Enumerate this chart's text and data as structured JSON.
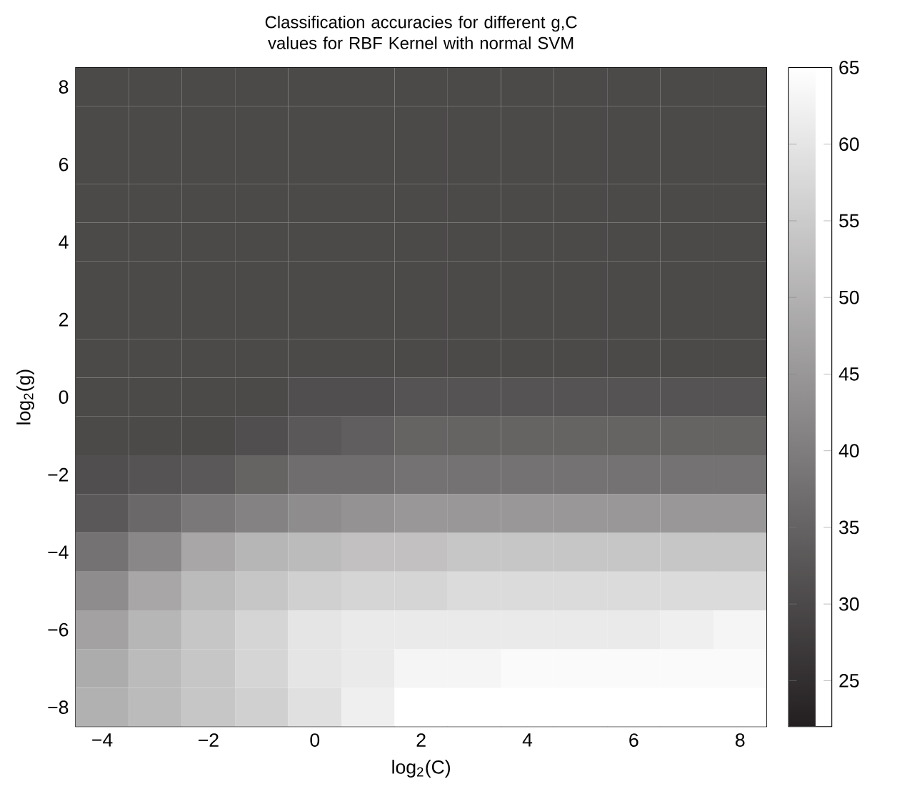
{
  "chart_data": {
    "type": "heatmap",
    "title": "Classification accuracies for different g,C values for RBF Kernel with normal SVM",
    "xlabel": "log$_{2}$(C)",
    "ylabel": "log$_{2}$(g)",
    "categories": [
      "−4",
      null,
      "−2",
      null,
      "0",
      null,
      "2",
      null,
      "4",
      null,
      "6",
      null,
      "8"
    ],
    "y_categories": [
      "8",
      null,
      "6",
      null,
      "4",
      null,
      "2",
      null,
      "0",
      null,
      "−2",
      null,
      "−4",
      null,
      "−6",
      null,
      "−8"
    ],
    "cells": [
      [
        30,
        30,
        30,
        30,
        30,
        30,
        30,
        30,
        30,
        30,
        30,
        30,
        30
      ],
      [
        30,
        30,
        30,
        30,
        30,
        30,
        30,
        30,
        30,
        30,
        30,
        30,
        30
      ],
      [
        30,
        30,
        30,
        30,
        30,
        30,
        30,
        30,
        30,
        30,
        30,
        30,
        30
      ],
      [
        30,
        30,
        30,
        30,
        30,
        30,
        30,
        30,
        30,
        30,
        30,
        30,
        30
      ],
      [
        30,
        30,
        30,
        30,
        30,
        30,
        30,
        30,
        30,
        30,
        30,
        30,
        30
      ],
      [
        30,
        30,
        30,
        30,
        30,
        30,
        30,
        30,
        30,
        30,
        30,
        30,
        30
      ],
      [
        30,
        30,
        30,
        30,
        30,
        30,
        30,
        30,
        30,
        30,
        30,
        30,
        30
      ],
      [
        30,
        30,
        30,
        30,
        30,
        30,
        30,
        30,
        30,
        30,
        30,
        30,
        30
      ],
      [
        30,
        30,
        30,
        30,
        31,
        31,
        32,
        32,
        32,
        32,
        32,
        32,
        32
      ],
      [
        30,
        30,
        30,
        31,
        33,
        34,
        35,
        35,
        35,
        35,
        35,
        35,
        35
      ],
      [
        31,
        32,
        33,
        35,
        37,
        37,
        38,
        38,
        38,
        38,
        38,
        38,
        38
      ],
      [
        33,
        36,
        39,
        41,
        43,
        44,
        45,
        45,
        45,
        45,
        45,
        45,
        45
      ],
      [
        38,
        42,
        48,
        51,
        52,
        53,
        53,
        54,
        54,
        54,
        54,
        54,
        54
      ],
      [
        43,
        48,
        52,
        54,
        56,
        57,
        57,
        58,
        58,
        58,
        58,
        58,
        58
      ],
      [
        47,
        51,
        54,
        57,
        60,
        61,
        61,
        61,
        61,
        61,
        61,
        62,
        63
      ],
      [
        49,
        52,
        54,
        57,
        60,
        61,
        63,
        63,
        64,
        64,
        64,
        64,
        64
      ],
      [
        50,
        52,
        54,
        56,
        59,
        62,
        65,
        65,
        65,
        65,
        65,
        65,
        65
      ]
    ],
    "clim": [
      22,
      65
    ],
    "cticks": [
      25,
      30,
      35,
      40,
      45,
      50,
      55,
      60,
      65
    ]
  }
}
